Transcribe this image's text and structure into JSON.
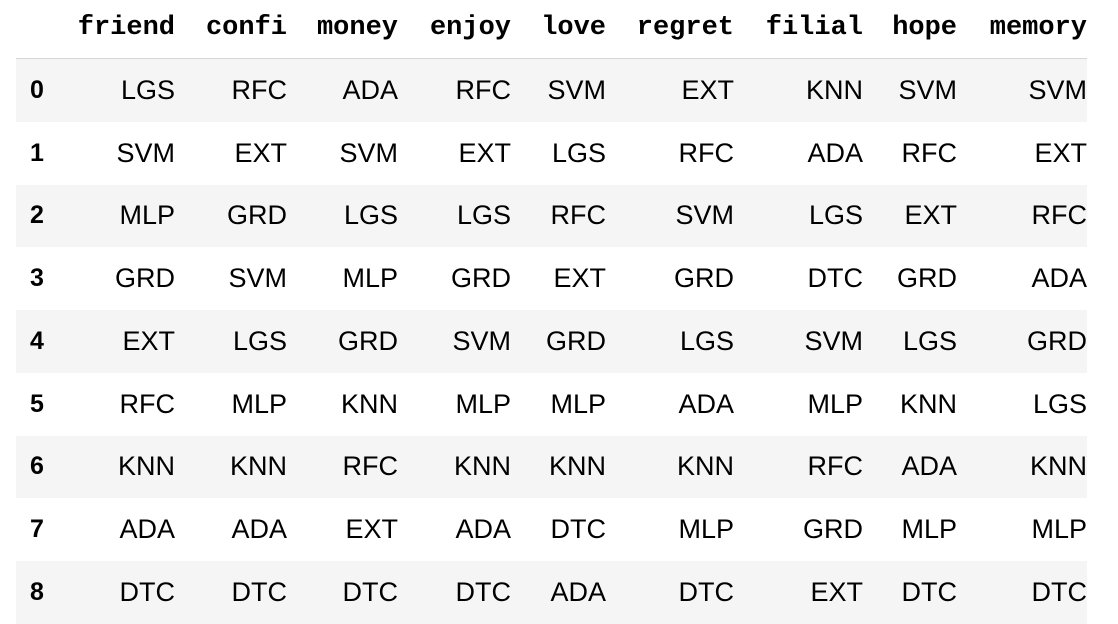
{
  "table": {
    "columns": [
      "friend",
      "confi",
      "money",
      "enjoy",
      "love",
      "regret",
      "filial",
      "hope",
      "memory"
    ],
    "rows": [
      {
        "index": "0",
        "cells": [
          "LGS",
          "RFC",
          "ADA",
          "RFC",
          "SVM",
          "EXT",
          "KNN",
          "SVM",
          "SVM"
        ]
      },
      {
        "index": "1",
        "cells": [
          "SVM",
          "EXT",
          "SVM",
          "EXT",
          "LGS",
          "RFC",
          "ADA",
          "RFC",
          "EXT"
        ]
      },
      {
        "index": "2",
        "cells": [
          "MLP",
          "GRD",
          "LGS",
          "LGS",
          "RFC",
          "SVM",
          "LGS",
          "EXT",
          "RFC"
        ]
      },
      {
        "index": "3",
        "cells": [
          "GRD",
          "SVM",
          "MLP",
          "GRD",
          "EXT",
          "GRD",
          "DTC",
          "GRD",
          "ADA"
        ]
      },
      {
        "index": "4",
        "cells": [
          "EXT",
          "LGS",
          "GRD",
          "SVM",
          "GRD",
          "LGS",
          "SVM",
          "LGS",
          "GRD"
        ]
      },
      {
        "index": "5",
        "cells": [
          "RFC",
          "MLP",
          "KNN",
          "MLP",
          "MLP",
          "ADA",
          "MLP",
          "KNN",
          "LGS"
        ]
      },
      {
        "index": "6",
        "cells": [
          "KNN",
          "KNN",
          "RFC",
          "KNN",
          "KNN",
          "KNN",
          "RFC",
          "ADA",
          "KNN"
        ]
      },
      {
        "index": "7",
        "cells": [
          "ADA",
          "ADA",
          "EXT",
          "ADA",
          "DTC",
          "MLP",
          "GRD",
          "MLP",
          "MLP"
        ]
      },
      {
        "index": "8",
        "cells": [
          "DTC",
          "DTC",
          "DTC",
          "DTC",
          "ADA",
          "DTC",
          "EXT",
          "DTC",
          "DTC"
        ]
      }
    ]
  }
}
